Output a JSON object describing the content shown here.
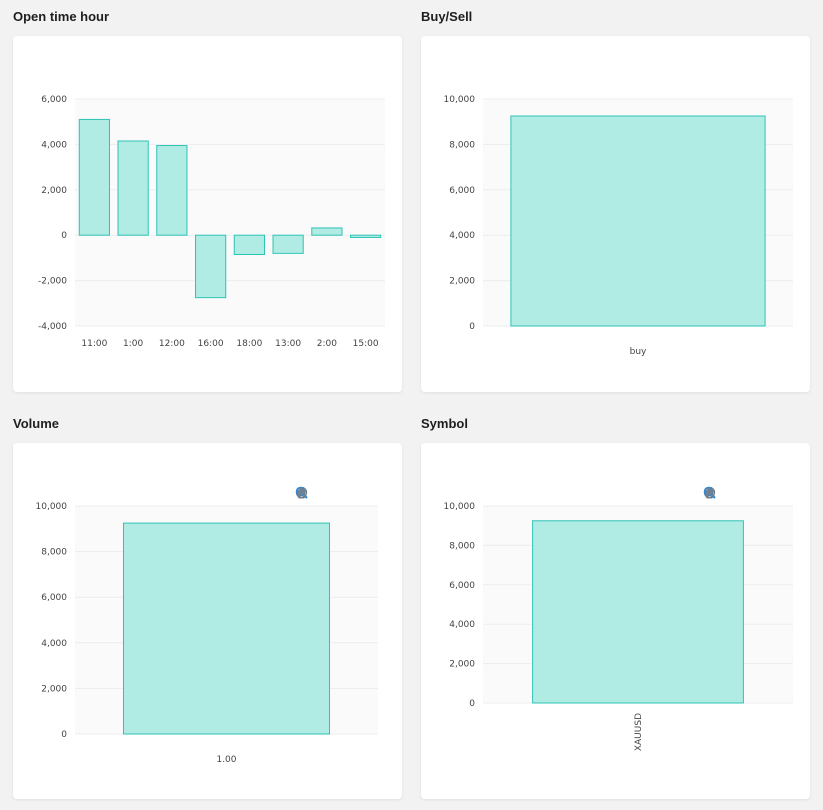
{
  "colors": {
    "bar_fill": "#b0ebe4",
    "bar_stroke": "#2ec4b6",
    "plot_bg": "#fafafa",
    "grid": "#ededed",
    "toolbar_icon": "#6e8192",
    "toolbar_active": "#1e88e5"
  },
  "toolbar_icons": [
    "zoom-in-icon",
    "zoom-out-icon",
    "zoom-selection-icon",
    "pan-hand-icon",
    "reset-home-icon"
  ],
  "panels": [
    {
      "title": "Open time hour",
      "chart_data": {
        "type": "bar",
        "categories": [
          "11:00",
          "1:00",
          "12:00",
          "16:00",
          "18:00",
          "13:00",
          "2:00",
          "15:00"
        ],
        "values": [
          5100,
          4150,
          3950,
          -2750,
          -850,
          -800,
          320,
          -100
        ],
        "ylim": [
          -4000,
          6000
        ],
        "yticks": [
          6000,
          4000,
          2000,
          0,
          -2000,
          -4000
        ],
        "ytick_labels": [
          "6,000",
          "4,000",
          "2,000",
          "0",
          "-2,000",
          "-4,000"
        ],
        "title": "",
        "xlabel": "",
        "ylabel": "",
        "grid": true,
        "legend": "none"
      }
    },
    {
      "title": "Buy/Sell",
      "chart_data": {
        "type": "bar",
        "categories": [
          "buy"
        ],
        "values": [
          9250
        ],
        "ylim": [
          0,
          10000
        ],
        "yticks": [
          10000,
          8000,
          6000,
          4000,
          2000,
          0
        ],
        "ytick_labels": [
          "10,000",
          "8,000",
          "6,000",
          "4,000",
          "2,000",
          "0"
        ],
        "title": "",
        "xlabel": "",
        "ylabel": "",
        "grid": true,
        "legend": "none"
      }
    },
    {
      "title": "Volume",
      "chart_data": {
        "type": "bar",
        "categories": [
          "1.00"
        ],
        "values": [
          9250
        ],
        "ylim": [
          0,
          10000
        ],
        "yticks": [
          10000,
          8000,
          6000,
          4000,
          2000,
          0
        ],
        "ytick_labels": [
          "10,000",
          "8,000",
          "6,000",
          "4,000",
          "2,000",
          "0"
        ],
        "title": "",
        "xlabel": "",
        "ylabel": "",
        "grid": true,
        "legend": "none"
      }
    },
    {
      "title": "Symbol",
      "chart_data": {
        "type": "bar",
        "categories": [
          "XAUUSD"
        ],
        "values": [
          9250
        ],
        "ylim": [
          0,
          10000
        ],
        "yticks": [
          10000,
          8000,
          6000,
          4000,
          2000,
          0
        ],
        "ytick_labels": [
          "10,000",
          "8,000",
          "6,000",
          "4,000",
          "2,000",
          "0"
        ],
        "title": "",
        "xlabel": "",
        "ylabel": "",
        "grid": true,
        "legend": "none",
        "x_label_rotation": "vertical"
      }
    }
  ]
}
